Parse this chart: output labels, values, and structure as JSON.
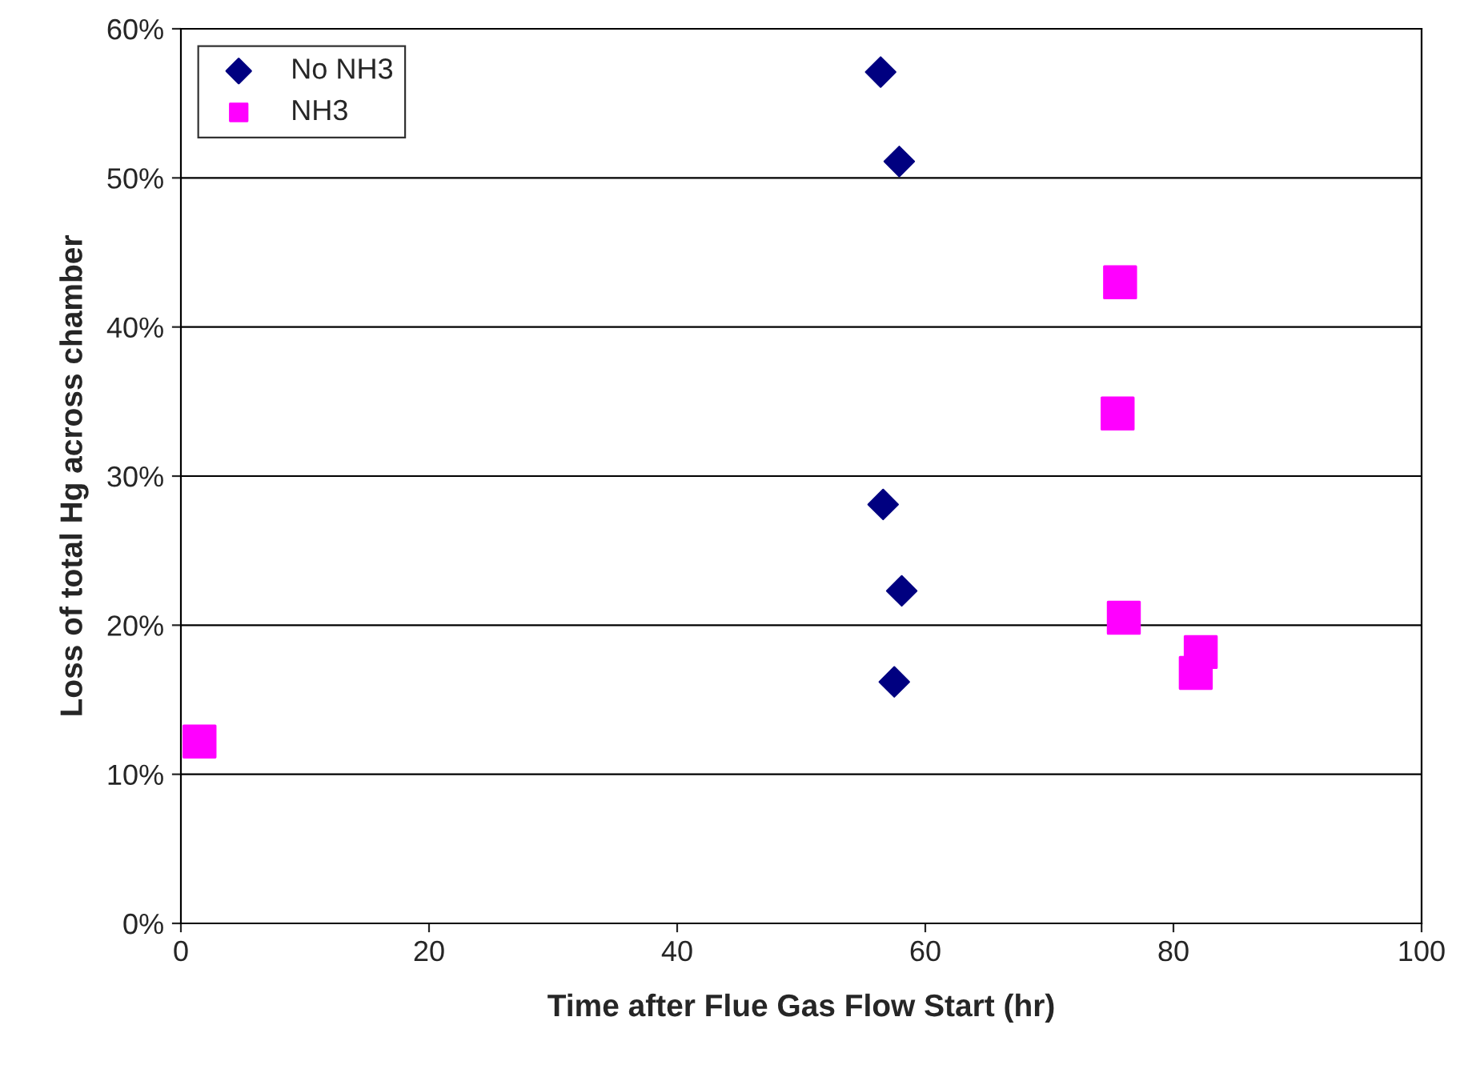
{
  "chart_data": {
    "type": "scatter",
    "xlabel": "Time after Flue Gas Flow Start (hr)",
    "ylabel": "Loss of total Hg across chamber",
    "series": [
      {
        "name": "No NH3",
        "color": "#000080",
        "marker": "diamond",
        "x": [
          56.4,
          57.9,
          56.6,
          58.1,
          57.5
        ],
        "values": [
          57.1,
          51.1,
          28.1,
          22.3,
          16.2
        ]
      },
      {
        "name": "NH3",
        "color": "#ff00ff",
        "marker": "square",
        "x": [
          1.5,
          75.7,
          75.5,
          76.0,
          82.2,
          81.8
        ],
        "values": [
          12.2,
          43.0,
          34.2,
          20.5,
          18.2,
          16.8
        ]
      }
    ],
    "xlim": [
      0,
      100
    ],
    "xticks": [
      0,
      20,
      40,
      60,
      80,
      100
    ],
    "ylim": [
      0,
      60
    ],
    "yticks": [
      {
        "value": 0,
        "label": "0%"
      },
      {
        "value": 10,
        "label": "10%"
      },
      {
        "value": 20,
        "label": "20%"
      },
      {
        "value": 30,
        "label": "30%"
      },
      {
        "value": 40,
        "label": "40%"
      },
      {
        "value": 50,
        "label": "50%"
      },
      {
        "value": 60,
        "label": "60%"
      }
    ],
    "grid": "y",
    "legend": "top left"
  }
}
